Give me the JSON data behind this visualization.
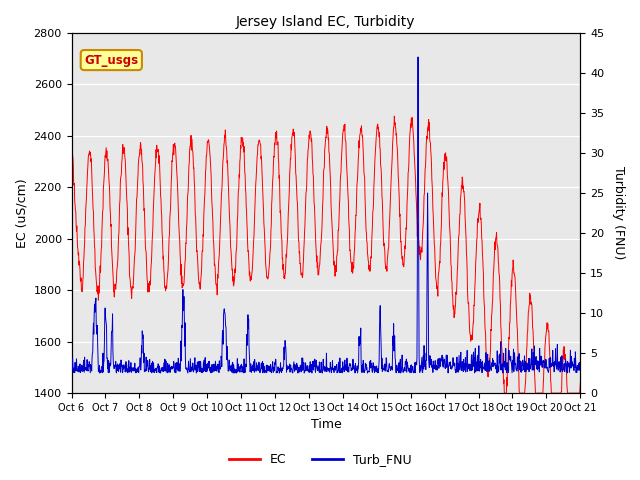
{
  "title": "Jersey Island EC, Turbidity",
  "xlabel": "Time",
  "ylabel_left": "EC (uS/cm)",
  "ylabel_right": "Turbidity (FNU)",
  "ylim_left": [
    1400,
    2800
  ],
  "ylim_right": [
    0,
    45
  ],
  "yticks_left": [
    1400,
    1600,
    1800,
    2000,
    2200,
    2400,
    2600,
    2800
  ],
  "yticks_right": [
    0,
    5,
    10,
    15,
    20,
    25,
    30,
    35,
    40,
    45
  ],
  "xtick_labels": [
    "Oct 6",
    "Oct 7",
    "Oct 8",
    "Oct 9",
    "Oct 10",
    "Oct 11",
    "Oct 12",
    "Oct 13",
    "Oct 14",
    "Oct 15",
    "Oct 16",
    "Oct 17",
    "Oct 18",
    "Oct 19",
    "Oct 20",
    "Oct 21"
  ],
  "ec_color": "#FF0000",
  "turb_color": "#0000CC",
  "plot_bg": "#E8E8E8",
  "inner_bg": "#DCDCDC",
  "annotation_text": "GT_usgs",
  "annotation_bg": "#FFFF99",
  "annotation_border": "#CC8800",
  "annotation_text_color": "#CC0000",
  "legend_ec": "EC",
  "legend_turb": "Turb_FNU",
  "figsize": [
    6.4,
    4.8
  ],
  "dpi": 100
}
